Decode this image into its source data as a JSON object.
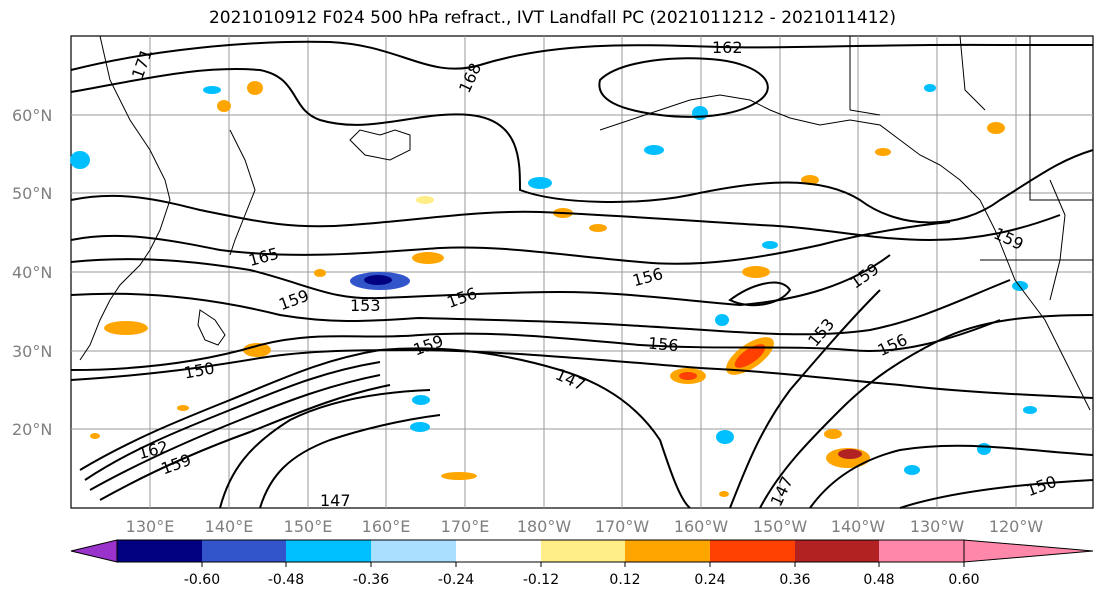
{
  "title": "2021010912 F024 500 hPa refract., IVT Landfall PC (2021011212 - 2021011412)",
  "map": {
    "lat_labels": [
      "60°N",
      "50°N",
      "40°N",
      "30°N",
      "20°N"
    ],
    "lon_labels": [
      "130°E",
      "140°E",
      "150°E",
      "160°E",
      "170°E",
      "180°W",
      "170°W",
      "160°W",
      "150°W",
      "140°W",
      "130°W",
      "120°W"
    ],
    "contour_labels": [
      "162",
      "171",
      "168",
      "165",
      "159",
      "153",
      "156",
      "156",
      "150",
      "159",
      "147",
      "162",
      "159",
      "147",
      "156",
      "159",
      "153",
      "156",
      "150",
      "147",
      "159"
    ]
  },
  "colorbar": {
    "colors": [
      "#9933cc",
      "#000080",
      "#3355cc",
      "#00bfff",
      "#aadfff",
      "#ffffff",
      "#ffee88",
      "#ffa500",
      "#ff4000",
      "#b22222",
      "#ff88aa"
    ],
    "tick_labels": [
      "-0.60",
      "-0.48",
      "-0.36",
      "-0.24",
      "-0.12",
      "0.12",
      "0.24",
      "0.36",
      "0.48",
      "0.60"
    ]
  }
}
